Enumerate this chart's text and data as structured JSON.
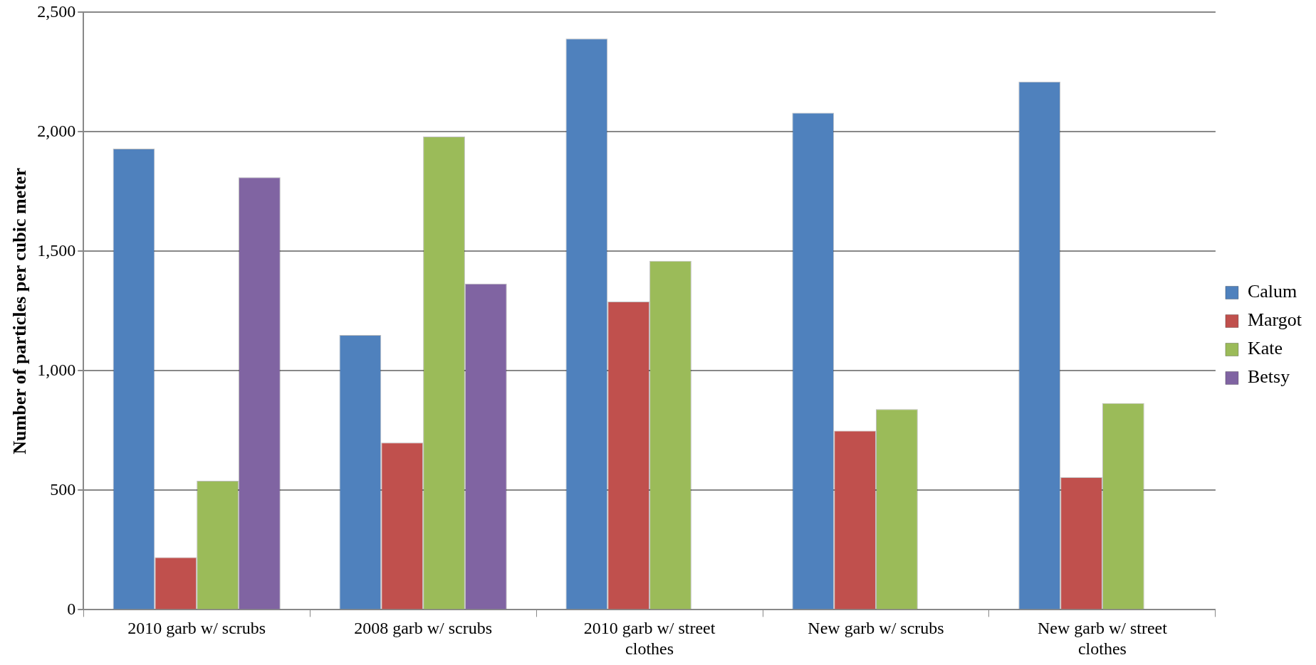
{
  "chart_data": {
    "type": "bar",
    "ylabel": "Number of particles per cubic meter",
    "categories": [
      "2010 garb w/ scrubs",
      "2008 garb w/ scrubs",
      "2010 garb w/ street clothes",
      "New garb w/ scrubs",
      "New garb w/ street clothes"
    ],
    "series": [
      {
        "name": "Calum",
        "color": "#4f81bd",
        "values": [
          1930,
          1150,
          2390,
          2080,
          2210
        ]
      },
      {
        "name": "Margot",
        "color": "#c0504d",
        "values": [
          220,
          700,
          1290,
          750,
          555
        ]
      },
      {
        "name": "Kate",
        "color": "#9bbb59",
        "values": [
          540,
          1980,
          1460,
          840,
          865
        ]
      },
      {
        "name": "Betsy",
        "color": "#8064a2",
        "values": [
          1810,
          1365,
          null,
          null,
          null
        ]
      }
    ],
    "ylim": [
      0,
      2500
    ],
    "yticks": [
      0,
      500,
      {
        "value": 1000,
        "label": "1,000"
      },
      {
        "value": 1500,
        "label": "1,500"
      },
      {
        "value": 2000,
        "label": "2,000"
      },
      {
        "value": 2500,
        "label": "2,500"
      }
    ],
    "grid": "y",
    "legend": "right"
  }
}
